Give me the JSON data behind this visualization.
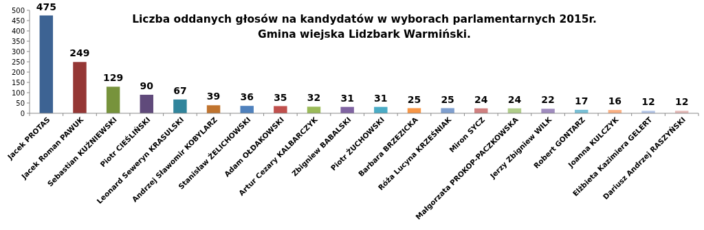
{
  "chart_data": {
    "type": "bar",
    "title": "Liczba oddanych głosów na kandydatów w wyborach parlamentarnych 2015r.",
    "subtitle": "Gmina wiejska Lidzbark Warmiński.",
    "categories": [
      "Jacek PROTAS",
      "Jacek Roman PAWUK",
      "Sebastian KUŹNIEWSKI",
      "Piotr CIEŚLIŃSKI",
      "Leonard Seweryn KRASULSKI",
      "Andrzej Sławomir KOBYLARZ",
      "Stanisław ŻELICHOWSKI",
      "Adam OŁDAKOWSKI",
      "Artur Cezary KALBARCZYK",
      "Zbigniew BABALSKI",
      "Piotr ŻUCHOWSKI",
      "Barbara BRZEZICKA",
      "Róża Lucyna KRZEŚNIAK",
      "Miron SYCZ",
      "Małgorzata  PROKOP-PACZKOWSKA",
      "Jerzy Zbigniew WILK",
      "Robert GONTARZ",
      "Joanna KULCZYK",
      "Elżbieta Kazimiera GELERT",
      "Dariusz Andrzej RASZYŃSKI"
    ],
    "values": [
      475,
      249,
      129,
      90,
      67,
      39,
      36,
      35,
      32,
      31,
      31,
      25,
      25,
      24,
      24,
      22,
      17,
      16,
      12,
      12
    ],
    "colors": [
      "#3d6393",
      "#953735",
      "#77933c",
      "#604a7b",
      "#31859c",
      "#c0742f",
      "#4f81bd",
      "#c0504d",
      "#9bbb59",
      "#8064a2",
      "#4bacc6",
      "#f79646",
      "#7f9fcf",
      "#d08080",
      "#b0cd8a",
      "#a08cbf",
      "#78c0d6",
      "#fab083",
      "#b4c6e7",
      "#e5b9b7"
    ],
    "ylim": [
      0,
      500
    ],
    "yticks": [
      0,
      50,
      100,
      150,
      200,
      250,
      300,
      350,
      400,
      450,
      500
    ],
    "data_labels": true,
    "grid": false
  }
}
